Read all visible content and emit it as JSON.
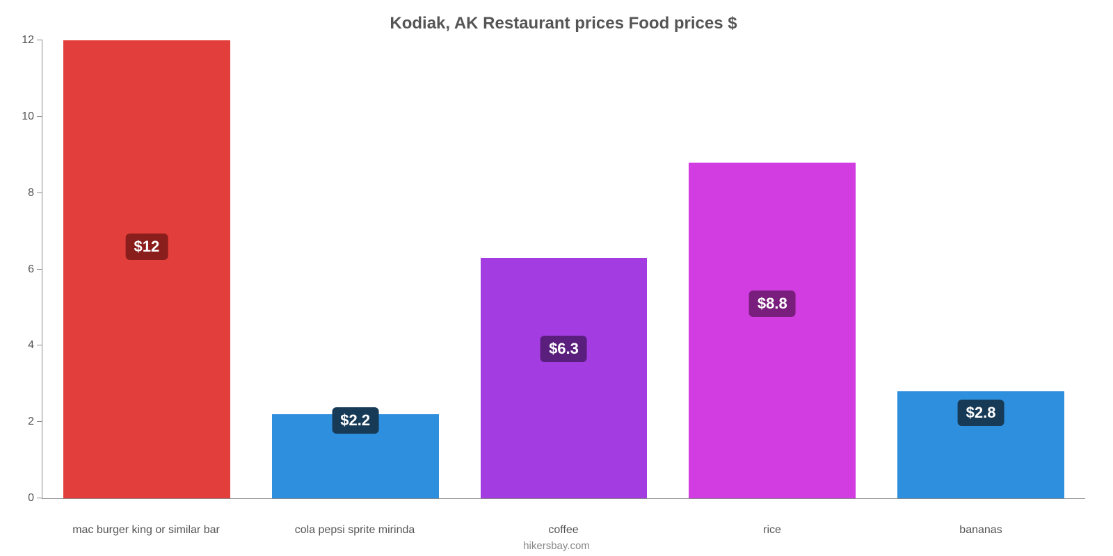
{
  "chart": {
    "type": "bar",
    "title": "Kodiak, AK Restaurant prices Food prices $",
    "title_fontsize": 24,
    "title_color": "#555555",
    "background_color": "#ffffff",
    "axis_color": "#888888",
    "label_color": "#555555",
    "label_fontsize": 16,
    "value_badge_fontsize": 22,
    "value_badge_text_color": "#ffffff",
    "bar_width": 0.8,
    "ylim": [
      0,
      12
    ],
    "ytick_step": 2,
    "yticks": [
      0,
      2,
      4,
      6,
      8,
      10,
      12
    ],
    "categories": [
      "mac burger king or similar bar",
      "cola pepsi sprite mirinda",
      "coffee",
      "rice",
      "bananas"
    ],
    "values": [
      12,
      2.2,
      6.3,
      8.8,
      2.8
    ],
    "value_labels": [
      "$12",
      "$2.2",
      "$6.3",
      "$8.8",
      "$2.8"
    ],
    "bar_colors": [
      "#e23e3b",
      "#2f8fdf",
      "#a33de1",
      "#d13de1",
      "#2f8fdf"
    ],
    "badge_colors": [
      "#8a1e1c",
      "#173a56",
      "#5a1e7d",
      "#7a1e7d",
      "#173a56"
    ],
    "badge_positions_pct": [
      55,
      93,
      62,
      58,
      80
    ],
    "source": "hikersbay.com",
    "source_color": "#888888",
    "source_fontsize": 15
  }
}
